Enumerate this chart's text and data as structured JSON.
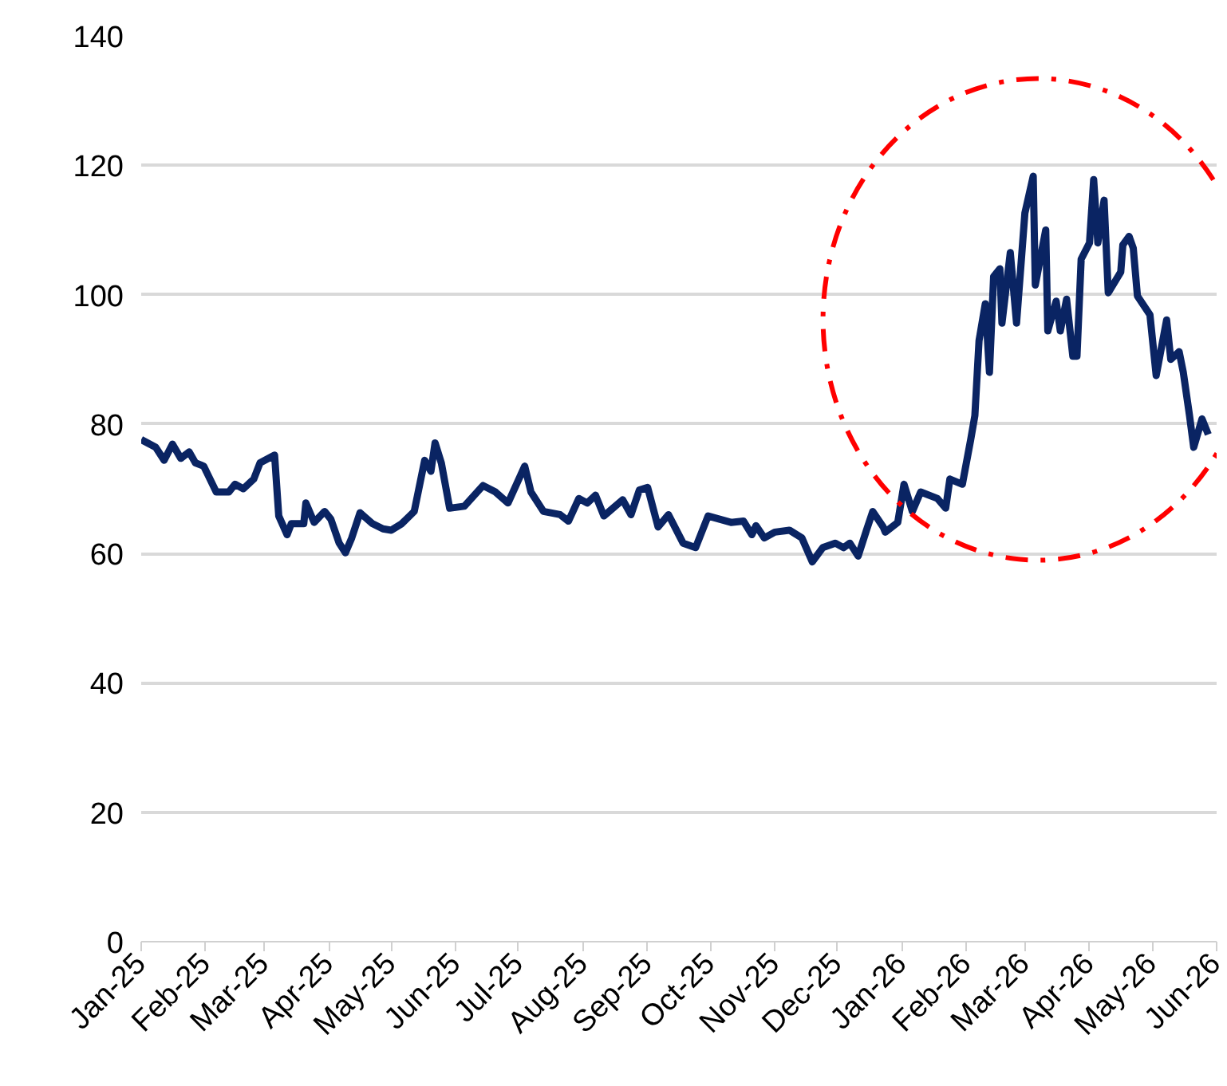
{
  "chart_data": {
    "type": "line",
    "x": [
      "2025-01-01",
      "2025-01-08",
      "2025-01-12",
      "2025-01-16",
      "2025-01-20",
      "2025-01-24",
      "2025-01-27",
      "2025-01-31",
      "2025-02-06",
      "2025-02-12",
      "2025-02-15",
      "2025-02-19",
      "2025-02-24",
      "2025-02-27",
      "2025-03-06",
      "2025-03-08",
      "2025-03-12",
      "2025-03-14",
      "2025-03-20",
      "2025-03-21",
      "2025-03-25",
      "2025-03-30",
      "2025-04-02",
      "2025-04-06",
      "2025-04-09",
      "2025-04-12",
      "2025-04-16",
      "2025-04-22",
      "2025-04-27",
      "2025-05-01",
      "2025-05-06",
      "2025-05-12",
      "2025-05-17",
      "2025-05-20",
      "2025-05-22",
      "2025-05-25",
      "2025-05-29",
      "2025-06-05",
      "2025-06-14",
      "2025-06-20",
      "2025-06-26",
      "2025-07-04",
      "2025-07-07",
      "2025-07-13",
      "2025-07-21",
      "2025-07-25",
      "2025-07-30",
      "2025-08-03",
      "2025-08-07",
      "2025-08-11",
      "2025-08-20",
      "2025-08-24",
      "2025-08-28",
      "2025-09-01",
      "2025-09-06",
      "2025-09-11",
      "2025-09-18",
      "2025-09-24",
      "2025-09-30",
      "2025-10-11",
      "2025-10-17",
      "2025-10-21",
      "2025-10-23",
      "2025-10-27",
      "2025-11-01",
      "2025-11-08",
      "2025-11-14",
      "2025-11-19",
      "2025-11-24",
      "2025-11-30",
      "2025-12-04",
      "2025-12-07",
      "2025-12-11",
      "2025-12-15",
      "2025-12-18",
      "2025-12-23",
      "2025-12-24",
      "2025-12-30",
      "2026-01-02",
      "2026-01-06",
      "2026-01-10",
      "2026-01-18",
      "2026-01-22",
      "2026-01-24",
      "2026-01-30",
      "2026-02-03",
      "2026-02-05",
      "2026-02-07",
      "2026-02-10",
      "2026-02-12",
      "2026-02-14",
      "2026-02-17",
      "2026-02-18",
      "2026-02-22",
      "2026-02-25",
      "2026-03-01",
      "2026-03-05",
      "2026-03-06",
      "2026-03-11",
      "2026-03-12",
      "2026-03-16",
      "2026-03-18",
      "2026-03-21",
      "2026-03-24",
      "2026-03-26",
      "2026-03-28",
      "2026-04-01",
      "2026-04-03",
      "2026-04-05",
      "2026-04-08",
      "2026-04-10",
      "2026-04-16",
      "2026-04-17",
      "2026-04-20",
      "2026-04-22",
      "2026-04-24",
      "2026-04-30",
      "2026-05-03",
      "2026-05-08",
      "2026-05-10",
      "2026-05-14",
      "2026-05-16",
      "2026-05-19",
      "2026-05-21",
      "2026-05-25",
      "2026-05-28"
    ],
    "series": [
      {
        "color": "#0a2463",
        "values": [
          77.6,
          76.4,
          74.4,
          76.9,
          74.7,
          75.7,
          74,
          73.5,
          69.5,
          69.5,
          70.7,
          70,
          71.5,
          74,
          75.2,
          65.8,
          62.9,
          64.6,
          64.6,
          67.8,
          64.8,
          66.5,
          65.3,
          61.6,
          60.1,
          62.4,
          66.3,
          64.6,
          63.8,
          63.6,
          64.6,
          66.5,
          74.4,
          72.7,
          77.1,
          74,
          67,
          67.3,
          70.5,
          69.5,
          67.8,
          73.5,
          69.5,
          66.5,
          66,
          65,
          68.5,
          67.8,
          69,
          65.8,
          68.3,
          66,
          69.8,
          70.2,
          64.1,
          66,
          61.6,
          60.9,
          65.8,
          64.8,
          65,
          62.9,
          64.3,
          62.4,
          63.3,
          63.6,
          62.4,
          58.7,
          60.9,
          61.6,
          60.9,
          61.6,
          59.6,
          63.6,
          66.5,
          64.1,
          63.3,
          64.8,
          70.7,
          66.5,
          69.5,
          68.5,
          67,
          71.5,
          70.7,
          77.6,
          81.3,
          92.9,
          98.6,
          88,
          102.8,
          104,
          95.6,
          106.5,
          95.6,
          112.6,
          118.3,
          101.5,
          110,
          94.4,
          99,
          94.4,
          99.3,
          90.5,
          90.5,
          105.5,
          108,
          117.8,
          108,
          114.6,
          100.3,
          103.5,
          107.7,
          109,
          107.2,
          99.8,
          96.9,
          87.5,
          96.1,
          90,
          91.2,
          88,
          81.3,
          76.4,
          80.8,
          78.4
        ]
      }
    ],
    "xlim": [
      "2025-01-01",
      "2026-06-01"
    ],
    "xticks": [
      {
        "value": "2025-01-01",
        "label": "Jan-25"
      },
      {
        "value": "2025-02-01",
        "label": "Feb-25"
      },
      {
        "value": "2025-03-01",
        "label": "Mar-25"
      },
      {
        "value": "2025-04-01",
        "label": "Apr-25"
      },
      {
        "value": "2025-05-01",
        "label": "May-25"
      },
      {
        "value": "2025-06-01",
        "label": "Jun-25"
      },
      {
        "value": "2025-07-01",
        "label": "Jul-25"
      },
      {
        "value": "2025-08-01",
        "label": "Aug-25"
      },
      {
        "value": "2025-09-01",
        "label": "Sep-25"
      },
      {
        "value": "2025-10-01",
        "label": "Oct-25"
      },
      {
        "value": "2025-11-01",
        "label": "Nov-25"
      },
      {
        "value": "2025-12-01",
        "label": "Dec-25"
      },
      {
        "value": "2026-01-01",
        "label": "Jan-26"
      },
      {
        "value": "2026-02-01",
        "label": "Feb-26"
      },
      {
        "value": "2026-03-01",
        "label": "Mar-26"
      },
      {
        "value": "2026-04-01",
        "label": "Apr-26"
      },
      {
        "value": "2026-05-01",
        "label": "May-26"
      },
      {
        "value": "2026-06-01",
        "label": "Jun-26"
      }
    ],
    "ylim": [
      0,
      140
    ],
    "yticks": [
      0,
      20,
      40,
      60,
      80,
      100,
      120,
      140
    ],
    "grid": "y",
    "marker": "none",
    "line_style": "solid"
  }
}
